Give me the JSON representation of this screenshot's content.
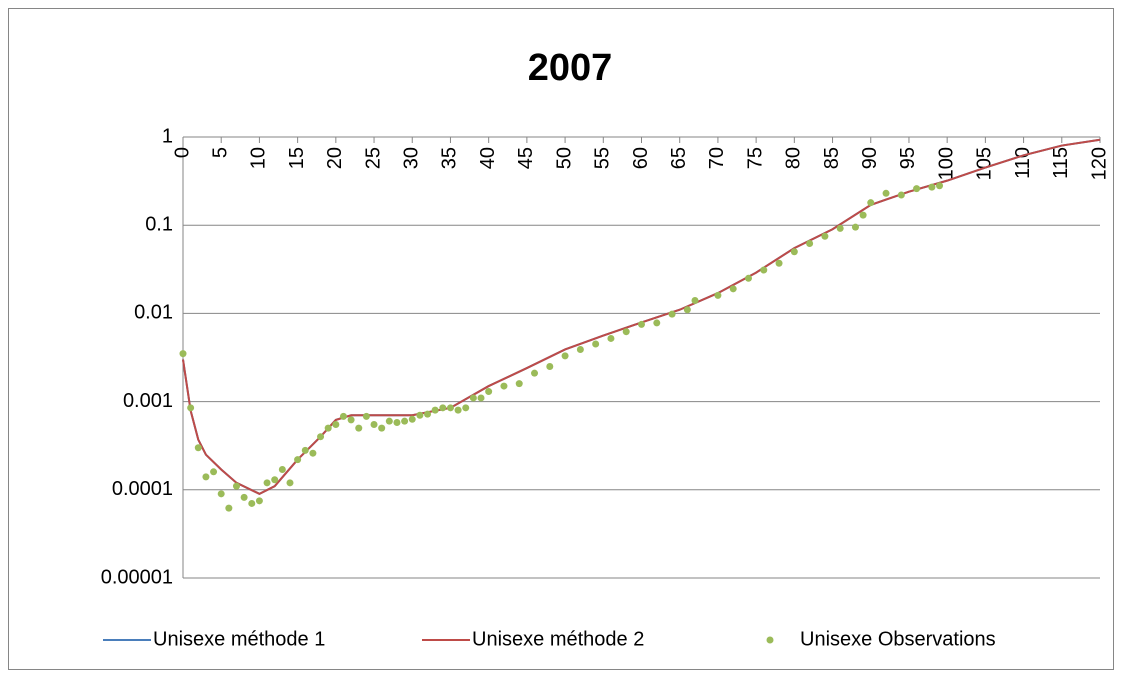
{
  "chart_data": {
    "type": "line",
    "title": "2007",
    "log_scale_y": true,
    "grid": true,
    "legend": "bottom",
    "xlim": [
      0,
      120
    ],
    "xticks": [
      0,
      5,
      10,
      15,
      20,
      25,
      30,
      35,
      40,
      45,
      50,
      55,
      60,
      65,
      70,
      75,
      80,
      85,
      90,
      95,
      100,
      105,
      110,
      115,
      120
    ],
    "ylim": [
      1e-05,
      1
    ],
    "yticks": [
      1e-05,
      0.0001,
      0.001,
      0.01,
      0.1,
      1
    ],
    "series": [
      {
        "name": "Unisexe méthode 1",
        "color": "#4a7ebb",
        "kind": "line",
        "x": [
          0,
          1,
          2,
          3,
          5,
          7,
          10,
          12,
          15,
          18,
          20,
          22,
          25,
          30,
          35,
          40,
          45,
          50,
          55,
          60,
          65,
          70,
          75,
          80,
          85,
          90,
          95,
          100,
          105,
          110,
          115,
          120
        ],
        "values": [
          0.003,
          0.00079,
          0.00037,
          0.00025,
          0.00017,
          0.00012,
          9e-05,
          0.00011,
          0.00022,
          0.0004,
          0.00062,
          0.0007,
          0.0007,
          0.0007,
          0.00085,
          0.0015,
          0.0024,
          0.0039,
          0.0056,
          0.0079,
          0.011,
          0.017,
          0.029,
          0.055,
          0.09,
          0.17,
          0.24,
          0.32,
          0.45,
          0.62,
          0.8,
          0.93
        ]
      },
      {
        "name": "Unisexe méthode 2",
        "color": "#be4b48",
        "kind": "line",
        "x": [
          0,
          1,
          2,
          3,
          5,
          7,
          10,
          12,
          15,
          18,
          20,
          22,
          25,
          30,
          35,
          40,
          45,
          50,
          55,
          60,
          65,
          70,
          75,
          80,
          85,
          90,
          95,
          100,
          105,
          110,
          115,
          120
        ],
        "values": [
          0.003,
          0.00079,
          0.00037,
          0.00025,
          0.00017,
          0.00012,
          9e-05,
          0.00011,
          0.00022,
          0.0004,
          0.00062,
          0.0007,
          0.0007,
          0.0007,
          0.00085,
          0.0015,
          0.0024,
          0.0039,
          0.0056,
          0.0079,
          0.011,
          0.017,
          0.029,
          0.055,
          0.09,
          0.17,
          0.24,
          0.32,
          0.45,
          0.62,
          0.8,
          0.93
        ]
      },
      {
        "name": "Unisexe Observations",
        "color": "#9bbb59",
        "kind": "scatter",
        "x": [
          0,
          1,
          2,
          3,
          4,
          5,
          6,
          7,
          8,
          9,
          10,
          11,
          12,
          13,
          14,
          15,
          16,
          17,
          18,
          19,
          20,
          21,
          22,
          23,
          24,
          25,
          26,
          27,
          28,
          29,
          30,
          31,
          32,
          33,
          34,
          35,
          36,
          37,
          38,
          39,
          40,
          42,
          44,
          46,
          48,
          50,
          52,
          54,
          56,
          58,
          60,
          62,
          64,
          66,
          67,
          70,
          72,
          74,
          76,
          78,
          80,
          82,
          84,
          86,
          88,
          89,
          90,
          92,
          94,
          96,
          98,
          99
        ],
        "values": [
          0.0035,
          0.00085,
          0.0003,
          0.00014,
          0.00016,
          9e-05,
          6.2e-05,
          0.00011,
          8.2e-05,
          7e-05,
          7.5e-05,
          0.00012,
          0.00013,
          0.00017,
          0.00012,
          0.00022,
          0.00028,
          0.00026,
          0.0004,
          0.0005,
          0.00055,
          0.00068,
          0.00062,
          0.0005,
          0.00068,
          0.00055,
          0.0005,
          0.0006,
          0.00058,
          0.0006,
          0.00063,
          0.0007,
          0.00072,
          0.0008,
          0.00085,
          0.00085,
          0.0008,
          0.00085,
          0.0011,
          0.0011,
          0.0013,
          0.0015,
          0.0016,
          0.0021,
          0.0025,
          0.0033,
          0.0039,
          0.0045,
          0.0052,
          0.0062,
          0.0075,
          0.0078,
          0.0098,
          0.011,
          0.014,
          0.016,
          0.019,
          0.025,
          0.031,
          0.037,
          0.05,
          0.062,
          0.075,
          0.092,
          0.095,
          0.13,
          0.18,
          0.23,
          0.22,
          0.26,
          0.27,
          0.28
        ]
      }
    ]
  }
}
